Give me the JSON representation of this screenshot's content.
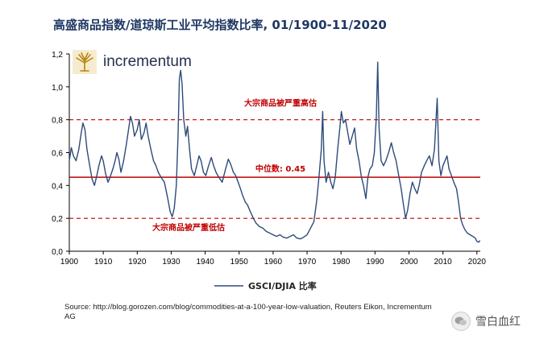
{
  "title": "高盛商品指数/道琼斯工业平均指数比率, 01/1900-11/2020",
  "logo_text": "incrementum",
  "source_text": "Source: http://blog.gorozen.com/blog/commodities-at-a-100-year-low-valuation, Reuters Eikon, Incrementum AG",
  "watermark_text": "雪白血红",
  "colors": {
    "title": "#1f3864",
    "line": "#2e4a7a",
    "reference": "#c00000",
    "logo": "#b8860b"
  },
  "chart_data": {
    "type": "line",
    "xlabel": "",
    "ylabel": "",
    "xlim": [
      1900,
      2021
    ],
    "ylim": [
      0,
      1.2
    ],
    "x_ticks": [
      1900,
      1910,
      1920,
      1930,
      1940,
      1950,
      1960,
      1970,
      1980,
      1990,
      2000,
      2010,
      2020
    ],
    "y_ticks": [
      "0,0",
      "0,2",
      "0,4",
      "0,6",
      "0,8",
      "1,0",
      "1,2"
    ],
    "grid": false,
    "legend": "bottom",
    "series": [
      {
        "name": "GSCI/DJIA 比率",
        "points": [
          [
            1900,
            0.55
          ],
          [
            1900.6,
            0.63
          ],
          [
            1901.2,
            0.58
          ],
          [
            1902,
            0.55
          ],
          [
            1902.8,
            0.62
          ],
          [
            1903.5,
            0.72
          ],
          [
            1904,
            0.78
          ],
          [
            1904.6,
            0.74
          ],
          [
            1905.2,
            0.62
          ],
          [
            1906,
            0.52
          ],
          [
            1906.7,
            0.44
          ],
          [
            1907.4,
            0.4
          ],
          [
            1908,
            0.45
          ],
          [
            1908.7,
            0.52
          ],
          [
            1909.5,
            0.58
          ],
          [
            1910,
            0.55
          ],
          [
            1910.7,
            0.47
          ],
          [
            1911.4,
            0.42
          ],
          [
            1912,
            0.45
          ],
          [
            1912.8,
            0.5
          ],
          [
            1913.5,
            0.55
          ],
          [
            1914,
            0.6
          ],
          [
            1914.6,
            0.56
          ],
          [
            1915.2,
            0.48
          ],
          [
            1916,
            0.55
          ],
          [
            1916.8,
            0.65
          ],
          [
            1917.5,
            0.75
          ],
          [
            1918,
            0.82
          ],
          [
            1918.6,
            0.78
          ],
          [
            1919.2,
            0.7
          ],
          [
            1920,
            0.74
          ],
          [
            1920.6,
            0.8
          ],
          [
            1921.2,
            0.68
          ],
          [
            1922,
            0.72
          ],
          [
            1922.6,
            0.78
          ],
          [
            1923.2,
            0.7
          ],
          [
            1924,
            0.62
          ],
          [
            1924.8,
            0.55
          ],
          [
            1925.5,
            0.52
          ],
          [
            1926.2,
            0.48
          ],
          [
            1927,
            0.45
          ],
          [
            1928,
            0.42
          ],
          [
            1929,
            0.32
          ],
          [
            1929.7,
            0.24
          ],
          [
            1930.3,
            0.21
          ],
          [
            1930.9,
            0.26
          ],
          [
            1931.5,
            0.4
          ],
          [
            1932,
            0.7
          ],
          [
            1932.4,
            1.05
          ],
          [
            1932.8,
            1.1
          ],
          [
            1933.2,
            1.02
          ],
          [
            1933.7,
            0.8
          ],
          [
            1934.3,
            0.7
          ],
          [
            1934.8,
            0.76
          ],
          [
            1935.4,
            0.62
          ],
          [
            1936,
            0.5
          ],
          [
            1936.8,
            0.46
          ],
          [
            1937.5,
            0.52
          ],
          [
            1938.2,
            0.58
          ],
          [
            1938.8,
            0.55
          ],
          [
            1939.5,
            0.48
          ],
          [
            1940.2,
            0.46
          ],
          [
            1941,
            0.52
          ],
          [
            1941.8,
            0.57
          ],
          [
            1942.5,
            0.52
          ],
          [
            1943.2,
            0.48
          ],
          [
            1944,
            0.45
          ],
          [
            1945,
            0.42
          ],
          [
            1946,
            0.5
          ],
          [
            1946.8,
            0.56
          ],
          [
            1947.5,
            0.53
          ],
          [
            1948.3,
            0.48
          ],
          [
            1949,
            0.46
          ],
          [
            1949.7,
            0.42
          ],
          [
            1950.4,
            0.38
          ],
          [
            1951,
            0.34
          ],
          [
            1951.8,
            0.3
          ],
          [
            1952.5,
            0.28
          ],
          [
            1953.3,
            0.24
          ],
          [
            1954.2,
            0.2
          ],
          [
            1955,
            0.17
          ],
          [
            1956,
            0.15
          ],
          [
            1957,
            0.14
          ],
          [
            1958,
            0.12
          ],
          [
            1959,
            0.11
          ],
          [
            1960,
            0.1
          ],
          [
            1961,
            0.09
          ],
          [
            1962,
            0.1
          ],
          [
            1963,
            0.085
          ],
          [
            1964,
            0.08
          ],
          [
            1965,
            0.09
          ],
          [
            1966,
            0.1
          ],
          [
            1967,
            0.08
          ],
          [
            1968,
            0.075
          ],
          [
            1969,
            0.085
          ],
          [
            1970,
            0.1
          ],
          [
            1971,
            0.14
          ],
          [
            1972,
            0.18
          ],
          [
            1972.8,
            0.3
          ],
          [
            1973.5,
            0.45
          ],
          [
            1974.2,
            0.62
          ],
          [
            1974.6,
            0.85
          ],
          [
            1975,
            0.55
          ],
          [
            1975.6,
            0.42
          ],
          [
            1976.3,
            0.48
          ],
          [
            1977,
            0.42
          ],
          [
            1977.6,
            0.38
          ],
          [
            1978.3,
            0.45
          ],
          [
            1979,
            0.62
          ],
          [
            1979.6,
            0.74
          ],
          [
            1980.1,
            0.85
          ],
          [
            1980.7,
            0.78
          ],
          [
            1981.3,
            0.8
          ],
          [
            1982,
            0.72
          ],
          [
            1982.6,
            0.65
          ],
          [
            1983.3,
            0.7
          ],
          [
            1984,
            0.75
          ],
          [
            1984.6,
            0.62
          ],
          [
            1985.3,
            0.55
          ],
          [
            1986,
            0.45
          ],
          [
            1986.6,
            0.4
          ],
          [
            1987.3,
            0.32
          ],
          [
            1987.9,
            0.45
          ],
          [
            1988.5,
            0.5
          ],
          [
            1989.2,
            0.52
          ],
          [
            1989.8,
            0.6
          ],
          [
            1990.4,
            0.82
          ],
          [
            1990.8,
            1.15
          ],
          [
            1991.2,
            0.75
          ],
          [
            1991.8,
            0.55
          ],
          [
            1992.5,
            0.52
          ],
          [
            1993.2,
            0.55
          ],
          [
            1994,
            0.6
          ],
          [
            1994.8,
            0.66
          ],
          [
            1995.5,
            0.6
          ],
          [
            1996.2,
            0.55
          ],
          [
            1997,
            0.46
          ],
          [
            1997.7,
            0.38
          ],
          [
            1998.4,
            0.28
          ],
          [
            1999,
            0.2
          ],
          [
            1999.6,
            0.25
          ],
          [
            2000.3,
            0.35
          ],
          [
            2001,
            0.42
          ],
          [
            2001.7,
            0.38
          ],
          [
            2002.4,
            0.35
          ],
          [
            2003,
            0.4
          ],
          [
            2003.7,
            0.48
          ],
          [
            2004.5,
            0.52
          ],
          [
            2005.2,
            0.55
          ],
          [
            2006,
            0.58
          ],
          [
            2006.8,
            0.52
          ],
          [
            2007.5,
            0.62
          ],
          [
            2008.3,
            0.93
          ],
          [
            2008.8,
            0.55
          ],
          [
            2009.4,
            0.46
          ],
          [
            2010,
            0.52
          ],
          [
            2010.6,
            0.55
          ],
          [
            2011.2,
            0.58
          ],
          [
            2011.8,
            0.5
          ],
          [
            2012.5,
            0.46
          ],
          [
            2013.2,
            0.42
          ],
          [
            2014,
            0.38
          ],
          [
            2014.6,
            0.3
          ],
          [
            2015.2,
            0.2
          ],
          [
            2015.8,
            0.16
          ],
          [
            2016.5,
            0.13
          ],
          [
            2017.2,
            0.11
          ],
          [
            2018,
            0.1
          ],
          [
            2018.8,
            0.09
          ],
          [
            2019.5,
            0.08
          ],
          [
            2020,
            0.06
          ],
          [
            2020.5,
            0.055
          ],
          [
            2020.9,
            0.065
          ]
        ]
      }
    ],
    "reference_lines": [
      {
        "y": 0.8,
        "style": "dashed",
        "label": "大宗商品被严重高估"
      },
      {
        "y": 0.45,
        "style": "solid",
        "label": "中位数: 0.45"
      },
      {
        "y": 0.2,
        "style": "dashed",
        "label": "大宗商品被严重低估"
      }
    ]
  }
}
